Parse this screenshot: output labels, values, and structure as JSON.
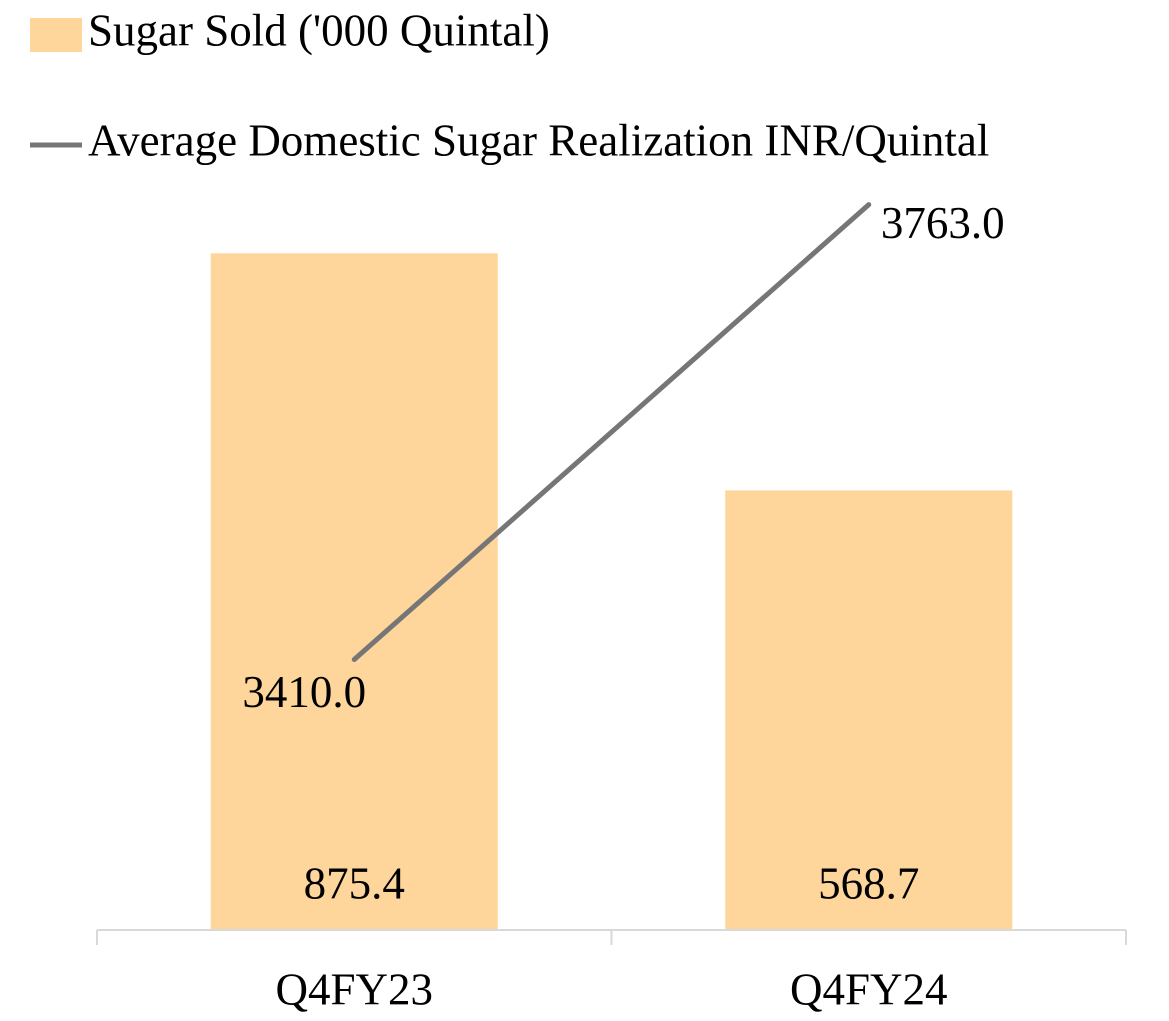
{
  "chart_data": {
    "type": "bar-line",
    "categories": [
      "Q4FY23",
      "Q4FY24"
    ],
    "series": [
      {
        "name": "Sugar Sold ('000 Quintal)",
        "type": "bar",
        "color": "#fed59b",
        "values": [
          875.4,
          568.7
        ]
      },
      {
        "name": "Average Domestic Sugar Realization INR/Quintal",
        "type": "line",
        "axis": "y2",
        "color": "#767676",
        "values": [
          3410,
          3763
        ],
        "value_labels": [
          "3410.0",
          "3763.0"
        ]
      }
    ],
    "ylim": [
      0,
      1000
    ],
    "y2lim": [
      3200,
      3800
    ],
    "grid": false,
    "legend": "top"
  }
}
